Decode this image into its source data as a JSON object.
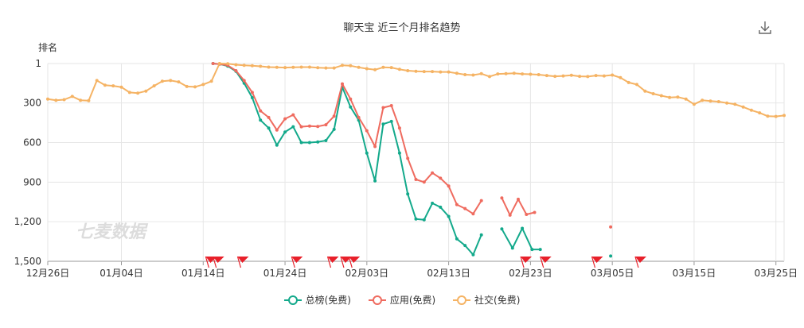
{
  "chart_data": {
    "type": "line",
    "title": "聊天宝 近三个月排名趋势",
    "ylabel": "排名",
    "xlabel": "",
    "watermark": "七麦数据",
    "y_inverted": true,
    "ylim": [
      1,
      1500
    ],
    "y_ticks": [
      "1",
      "300",
      "600",
      "900",
      "1,200",
      "1,500"
    ],
    "y_tick_values": [
      1,
      300,
      600,
      900,
      1200,
      1500
    ],
    "x_ticks": [
      "12月26日",
      "01月04日",
      "01月14日",
      "01月24日",
      "02月03日",
      "02月13日",
      "02月23日",
      "03月05日",
      "03月15日",
      "03月25日"
    ],
    "x_tick_days": [
      0,
      9,
      19,
      29,
      39,
      49,
      59,
      69,
      79,
      89
    ],
    "x_day_range": [
      0,
      90
    ],
    "grid": true,
    "legend_position": "bottom",
    "series": [
      {
        "name": "总榜(免费)",
        "color": "#13a98b",
        "points": [
          [
            20.2,
            1
          ],
          [
            21,
            5
          ],
          [
            22,
            20
          ],
          [
            23,
            60
          ],
          [
            24,
            150
          ],
          [
            25,
            260
          ],
          [
            26,
            430
          ],
          [
            27,
            490
          ],
          [
            28,
            620
          ],
          [
            29,
            520
          ],
          [
            30,
            480
          ],
          [
            31,
            600
          ],
          [
            32,
            600
          ],
          [
            33,
            595
          ],
          [
            34,
            585
          ],
          [
            35,
            500
          ],
          [
            36,
            180
          ],
          [
            37,
            330
          ],
          [
            38,
            430
          ],
          [
            39,
            680
          ],
          [
            40,
            890
          ],
          [
            41,
            460
          ],
          [
            42,
            440
          ],
          [
            43,
            680
          ],
          [
            44,
            990
          ],
          [
            45,
            1180
          ],
          [
            46,
            1185
          ],
          [
            47,
            1060
          ],
          [
            48,
            1090
          ],
          [
            49,
            1160
          ],
          [
            50,
            1330
          ],
          [
            51,
            1380
          ],
          [
            52,
            1450
          ],
          [
            53,
            1300
          ],
          null,
          [
            55.5,
            1255
          ],
          [
            56.8,
            1400
          ],
          [
            58,
            1250
          ],
          [
            59.2,
            1410
          ],
          [
            60.2,
            1410
          ],
          null,
          [
            68.8,
            1460
          ]
        ]
      },
      {
        "name": "应用(免费)",
        "color": "#ef6b5f",
        "points": [
          [
            20.2,
            1
          ],
          [
            21,
            5
          ],
          [
            22,
            15
          ],
          [
            23,
            55
          ],
          [
            24,
            130
          ],
          [
            25,
            220
          ],
          [
            26,
            360
          ],
          [
            27,
            410
          ],
          [
            28,
            505
          ],
          [
            29,
            420
          ],
          [
            30,
            390
          ],
          [
            31,
            480
          ],
          [
            32,
            475
          ],
          [
            33,
            478
          ],
          [
            34,
            465
          ],
          [
            35,
            400
          ],
          [
            36,
            155
          ],
          [
            37,
            270
          ],
          [
            38,
            410
          ],
          [
            39,
            510
          ],
          [
            40,
            630
          ],
          [
            41,
            335
          ],
          [
            42,
            320
          ],
          [
            43,
            490
          ],
          [
            44,
            720
          ],
          [
            45,
            880
          ],
          [
            46,
            900
          ],
          [
            47,
            830
          ],
          [
            48,
            870
          ],
          [
            49,
            930
          ],
          [
            50,
            1070
          ],
          [
            51,
            1100
          ],
          [
            52,
            1140
          ],
          [
            53,
            1040
          ],
          null,
          [
            55.5,
            1020
          ],
          [
            56.5,
            1150
          ],
          [
            57.5,
            1030
          ],
          [
            58.5,
            1145
          ],
          [
            59.5,
            1130
          ],
          null,
          [
            68.8,
            1240
          ]
        ]
      },
      {
        "name": "社交(免费)",
        "color": "#f5b364",
        "points": [
          [
            0,
            270
          ],
          [
            1,
            280
          ],
          [
            2,
            275
          ],
          [
            3,
            250
          ],
          [
            4,
            280
          ],
          [
            5,
            283
          ],
          [
            6,
            130
          ],
          [
            7,
            165
          ],
          [
            8,
            170
          ],
          [
            9,
            180
          ],
          [
            10,
            220
          ],
          [
            11,
            225
          ],
          [
            12,
            210
          ],
          [
            13,
            170
          ],
          [
            14,
            135
          ],
          [
            15,
            130
          ],
          [
            16,
            140
          ],
          [
            17,
            175
          ],
          [
            18,
            178
          ],
          [
            19,
            160
          ],
          [
            20,
            135
          ],
          [
            21,
            1
          ],
          [
            22,
            3
          ],
          [
            23,
            10
          ],
          [
            24,
            15
          ],
          [
            25,
            18
          ],
          [
            26,
            22
          ],
          [
            27,
            28
          ],
          [
            28,
            30
          ],
          [
            29,
            32
          ],
          [
            30,
            30
          ],
          [
            31,
            28
          ],
          [
            32,
            28
          ],
          [
            33,
            33
          ],
          [
            34,
            35
          ],
          [
            35,
            35
          ],
          [
            36,
            15
          ],
          [
            37,
            18
          ],
          [
            38,
            30
          ],
          [
            39,
            40
          ],
          [
            40,
            48
          ],
          [
            41,
            30
          ],
          [
            42,
            32
          ],
          [
            43,
            45
          ],
          [
            44,
            55
          ],
          [
            45,
            60
          ],
          [
            46,
            62
          ],
          [
            47,
            62
          ],
          [
            48,
            65
          ],
          [
            49,
            65
          ],
          [
            50,
            75
          ],
          [
            51,
            85
          ],
          [
            52,
            88
          ],
          [
            53,
            78
          ],
          [
            54,
            100
          ],
          [
            55,
            80
          ],
          [
            56,
            78
          ],
          [
            57,
            75
          ],
          [
            58,
            80
          ],
          [
            59,
            82
          ],
          [
            60,
            85
          ],
          [
            61,
            92
          ],
          [
            62,
            98
          ],
          [
            63,
            95
          ],
          [
            64,
            90
          ],
          [
            65,
            98
          ],
          [
            66,
            100
          ],
          [
            67,
            92
          ],
          [
            68,
            95
          ],
          [
            69,
            88
          ],
          [
            70,
            108
          ],
          [
            71,
            145
          ],
          [
            72,
            160
          ],
          [
            73,
            210
          ],
          [
            74,
            230
          ],
          [
            75,
            245
          ],
          [
            76,
            258
          ],
          [
            77,
            255
          ],
          [
            78,
            270
          ],
          [
            79,
            310
          ],
          [
            80,
            280
          ],
          [
            81,
            285
          ],
          [
            82,
            290
          ],
          [
            83,
            300
          ],
          [
            84,
            310
          ],
          [
            85,
            330
          ],
          [
            86,
            355
          ],
          [
            87,
            375
          ],
          [
            88,
            400
          ],
          [
            89,
            402
          ],
          [
            90,
            395
          ]
        ]
      }
    ],
    "event_flags": [
      19.3,
      20.2,
      23.2,
      29.8,
      34.2,
      35.8,
      36.8,
      57.8,
      60.2,
      66.5,
      71.8
    ]
  },
  "legend": {
    "series_0": "总榜(免费)",
    "series_1": "应用(免费)",
    "series_2": "社交(免费)"
  },
  "colors": {
    "series_0": "#13a98b",
    "series_1": "#ef6b5f",
    "series_2": "#f5b364",
    "flag": "#e8202a"
  },
  "toolbar": {
    "download_icon": "download-icon"
  }
}
